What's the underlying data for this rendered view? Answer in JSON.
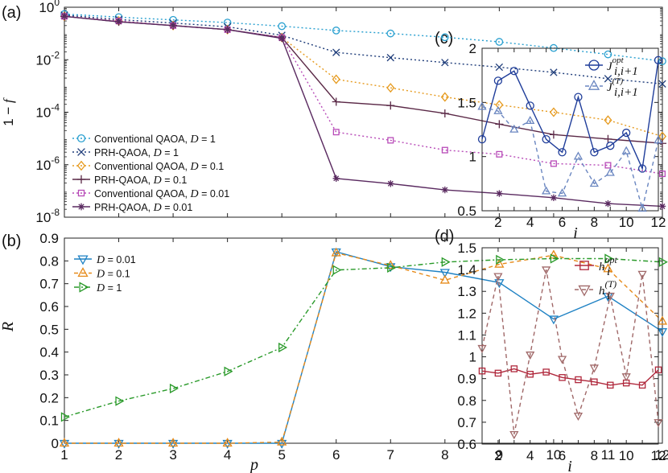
{
  "panel_labels": {
    "a": "(a)",
    "b": "(b)",
    "c": "(c)",
    "d": "(d)"
  },
  "chart_data": [
    {
      "id": "a",
      "type": "line",
      "yscale": "log",
      "ylabel": "1 − f",
      "xlabel": "",
      "xlim": [
        1,
        12
      ],
      "ylim": [
        1e-08,
        1
      ],
      "yticks": [
        {
          "v": 1,
          "label": "10^0"
        },
        {
          "v": 0.01,
          "label": "10^-2"
        },
        {
          "v": 0.0001,
          "label": "10^-4"
        },
        {
          "v": 1e-06,
          "label": "10^-6"
        },
        {
          "v": 1e-08,
          "label": "10^-8"
        }
      ],
      "x": [
        1,
        2,
        3,
        4,
        5,
        6,
        7,
        8,
        9,
        10,
        11,
        12
      ],
      "legend_position": "bottom-left",
      "series": [
        {
          "name": "Conventional QAOA, D = 1",
          "color": "#2aa0d0",
          "marker": "circle",
          "dash": "2,3",
          "values": [
            0.55,
            0.42,
            0.33,
            0.26,
            0.19,
            0.13,
            0.1,
            0.072,
            0.048,
            0.028,
            0.016,
            0.0088
          ]
        },
        {
          "name": "PRH-QAOA, D = 1",
          "color": "#1f3d7a",
          "marker": "x",
          "dash": "2,3",
          "values": [
            0.5,
            0.34,
            0.25,
            0.18,
            0.085,
            0.019,
            0.012,
            0.0078,
            0.0052,
            0.0033,
            0.0019,
            0.0012
          ]
        },
        {
          "name": "Conventional QAOA, D = 0.1",
          "color": "#e69a1e",
          "marker": "diamond",
          "dash": "2,3",
          "values": [
            0.45,
            0.3,
            0.2,
            0.14,
            0.07,
            0.0018,
            0.00085,
            0.00038,
            0.00019,
            0.0001,
            5e-05,
            1.2e-05
          ]
        },
        {
          "name": "PRH-QAOA, D = 0.1",
          "color": "#5a2846",
          "marker": "plus",
          "dash": "",
          "values": [
            0.45,
            0.28,
            0.2,
            0.14,
            0.07,
            0.00025,
            0.00018,
            9e-05,
            3.5e-05,
            1.4e-05,
            9.5e-06,
            6.5e-06
          ]
        },
        {
          "name": "Conventional QAOA, D = 0.01",
          "color": "#b84bb8",
          "marker": "square",
          "dash": "2,3",
          "values": [
            0.45,
            0.3,
            0.2,
            0.14,
            0.07,
            1.75e-05,
            8.5e-06,
            3.6e-06,
            2.5e-06,
            1.1e-06,
            9.5e-07,
            4.5e-07
          ]
        },
        {
          "name": "PRH-QAOA, D = 0.01",
          "color": "#5a2a60",
          "marker": "star",
          "dash": "",
          "values": [
            0.45,
            0.28,
            0.2,
            0.14,
            0.065,
            3e-07,
            1.9e-07,
            1.1e-07,
            8e-08,
            5.5e-08,
            3.3e-08,
            2.6e-08
          ]
        }
      ]
    },
    {
      "id": "b",
      "type": "line",
      "ylabel": "R",
      "xlabel": "p",
      "xlim": [
        1,
        12
      ],
      "ylim": [
        0,
        0.9
      ],
      "yticks": [
        0,
        0.1,
        0.2,
        0.3,
        0.4,
        0.5,
        0.6,
        0.7,
        0.8,
        0.9
      ],
      "xticks": [
        1,
        2,
        3,
        4,
        5,
        6,
        7,
        8,
        9,
        10,
        11,
        12
      ],
      "x": [
        1,
        2,
        3,
        4,
        5,
        6,
        7,
        8,
        9,
        10,
        11,
        12
      ],
      "legend_position": "top-left",
      "series": [
        {
          "name": "D = 0.01",
          "color": "#1f82c4",
          "marker": "tri-down",
          "dash": "",
          "values": [
            0,
            0,
            0,
            0,
            0,
            0.84,
            0.775,
            0.75,
            0.705,
            0.545,
            0.645,
            0.49
          ]
        },
        {
          "name": "D = 0.1",
          "color": "#e68a1a",
          "marker": "tri-up",
          "dash": "5,4",
          "values": [
            0,
            0,
            0,
            0,
            0.005,
            0.835,
            0.78,
            0.715,
            0.785,
            0.825,
            0.765,
            0.535
          ]
        },
        {
          "name": "D = 1",
          "color": "#2a9a2a",
          "marker": "tri-right",
          "dash": "6,3,2,3",
          "values": [
            0.115,
            0.185,
            0.24,
            0.315,
            0.42,
            0.76,
            0.77,
            0.795,
            0.805,
            0.81,
            0.81,
            0.795
          ]
        }
      ]
    },
    {
      "id": "c",
      "type": "line",
      "ylabel": "",
      "xlabel": "i",
      "xlim": [
        1,
        12
      ],
      "ylim": [
        0.5,
        2
      ],
      "yticks": [
        0.5,
        1,
        1.5,
        2
      ],
      "xticks": [
        2,
        4,
        6,
        8,
        10,
        12
      ],
      "x": [
        1,
        2,
        3,
        4,
        5,
        6,
        7,
        8,
        9,
        10,
        11,
        12
      ],
      "legend_position": "top-right",
      "series": [
        {
          "name": "J_{i,i+1}^{opt}",
          "color": "#1f3d9a",
          "marker": "circle",
          "dash": "",
          "values": [
            1.16,
            1.7,
            1.79,
            1.47,
            1.16,
            1.04,
            1.55,
            1.04,
            1.1,
            1.22,
            0.89,
            1.89
          ]
        },
        {
          "name": "J_{i,i+1}^{(T)}",
          "color": "#6a86c0",
          "marker": "tri-up",
          "dash": "5,4",
          "values": [
            1.46,
            1.42,
            1.25,
            1.33,
            0.68,
            0.66,
            1.0,
            0.75,
            0.85,
            1.05,
            0.52,
            1.15
          ]
        }
      ]
    },
    {
      "id": "d",
      "type": "line",
      "ylabel": "",
      "xlabel": "i",
      "xlim": [
        1,
        12
      ],
      "ylim": [
        0.6,
        1.5
      ],
      "yticks": [
        0.6,
        0.7,
        0.8,
        0.9,
        1,
        1.1,
        1.2,
        1.3,
        1.4,
        1.5
      ],
      "xticks": [
        2,
        4,
        6,
        8,
        10,
        12
      ],
      "x": [
        1,
        2,
        3,
        4,
        5,
        6,
        7,
        8,
        9,
        10,
        11,
        12
      ],
      "legend_position": "top-right",
      "series": [
        {
          "name": "h_i^{opt}",
          "color": "#b0283c",
          "marker": "square",
          "dash": "",
          "values": [
            0.935,
            0.925,
            0.945,
            0.92,
            0.93,
            0.905,
            0.895,
            0.885,
            0.87,
            0.88,
            0.87,
            0.94
          ]
        },
        {
          "name": "h_i^{(T)}",
          "color": "#a06868",
          "marker": "tri-down",
          "dash": "5,4",
          "values": [
            1.04,
            1.37,
            0.645,
            1.01,
            1.4,
            0.99,
            0.73,
            0.95,
            1.28,
            0.91,
            1.38,
            0.7
          ]
        }
      ]
    }
  ]
}
